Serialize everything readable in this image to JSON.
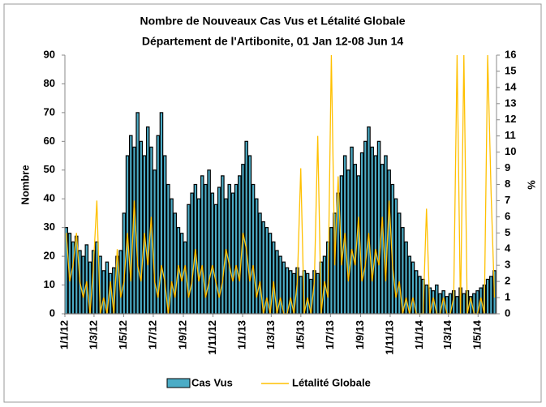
{
  "chart_data": {
    "type": "bar_line",
    "title": "Nombre de Nouveaux Cas Vus et Létalité Globale",
    "subtitle": "Département de l'Artibonite, 01 Jan 12-08 Jun 14",
    "ylabel": "Nombre",
    "y2label": "%",
    "xlim": [
      0,
      889
    ],
    "xticks": [
      {
        "value": 0,
        "label": "1/1/12"
      },
      {
        "value": 60,
        "label": "1/3/12"
      },
      {
        "value": 121,
        "label": "1/5/12"
      },
      {
        "value": 182,
        "label": "1/7/12"
      },
      {
        "value": 244,
        "label": "1/9/12"
      },
      {
        "value": 305,
        "label": "1/11/12"
      },
      {
        "value": 366,
        "label": "1/1/13"
      },
      {
        "value": 425,
        "label": "1/3/13"
      },
      {
        "value": 486,
        "label": "1/5/13"
      },
      {
        "value": 547,
        "label": "1/7/13"
      },
      {
        "value": 609,
        "label": "1/9/13"
      },
      {
        "value": 670,
        "label": "1/11/13"
      },
      {
        "value": 731,
        "label": "1/1/14"
      },
      {
        "value": 790,
        "label": "1/3/14"
      },
      {
        "value": 851,
        "label": "1/5/14"
      }
    ],
    "ylim": [
      0,
      90
    ],
    "yticks": [
      0,
      10,
      20,
      30,
      40,
      50,
      60,
      70,
      80,
      90
    ],
    "y2lim": [
      0,
      16
    ],
    "y2ticks": [
      0,
      1,
      2,
      3,
      4,
      5,
      6,
      7,
      8,
      9,
      10,
      11,
      12,
      13,
      14,
      15,
      16
    ],
    "x": [
      0,
      7,
      14,
      21,
      28,
      35,
      42,
      49,
      56,
      63,
      70,
      77,
      84,
      91,
      98,
      105,
      112,
      119,
      126,
      133,
      140,
      147,
      154,
      161,
      168,
      175,
      182,
      189,
      196,
      203,
      210,
      217,
      224,
      231,
      238,
      245,
      252,
      259,
      266,
      273,
      280,
      287,
      294,
      301,
      308,
      315,
      322,
      329,
      336,
      343,
      350,
      357,
      364,
      371,
      378,
      385,
      392,
      399,
      406,
      413,
      420,
      427,
      434,
      441,
      448,
      455,
      462,
      469,
      476,
      483,
      490,
      497,
      504,
      511,
      518,
      525,
      532,
      539,
      546,
      553,
      560,
      567,
      574,
      581,
      588,
      595,
      602,
      609,
      616,
      623,
      630,
      637,
      644,
      651,
      658,
      665,
      672,
      679,
      686,
      693,
      700,
      707,
      714,
      721,
      728,
      735,
      742,
      749,
      756,
      763,
      770,
      777,
      784,
      791,
      798,
      805,
      812,
      819,
      826,
      833,
      840,
      847,
      854,
      861,
      868,
      875,
      882
    ],
    "series": [
      {
        "name": "Cas Vus",
        "kind": "bar",
        "color": "#4BACC6",
        "edgecolor": "#000000",
        "values": [
          30,
          28,
          25,
          27,
          22,
          20,
          24,
          18,
          22,
          25,
          20,
          15,
          18,
          14,
          16,
          20,
          22,
          35,
          55,
          62,
          58,
          70,
          60,
          55,
          65,
          58,
          50,
          62,
          70,
          55,
          45,
          40,
          35,
          30,
          28,
          25,
          38,
          42,
          45,
          40,
          48,
          45,
          50,
          42,
          38,
          44,
          48,
          40,
          45,
          42,
          45,
          48,
          52,
          60,
          55,
          45,
          40,
          35,
          32,
          30,
          28,
          25,
          22,
          20,
          18,
          16,
          15,
          14,
          16,
          13,
          15,
          14,
          12,
          15,
          14,
          18,
          20,
          25,
          30,
          35,
          42,
          48,
          55,
          50,
          58,
          52,
          48,
          56,
          60,
          65,
          58,
          55,
          60,
          52,
          55,
          50,
          45,
          40,
          35,
          30,
          25,
          20,
          18,
          15,
          13,
          12,
          10,
          9,
          8,
          10,
          7,
          8,
          6,
          7,
          8,
          6,
          9,
          7,
          8,
          6,
          7,
          8,
          9,
          10,
          12,
          13,
          15
        ]
      },
      {
        "name": "Létalité Globale",
        "kind": "line",
        "axis": "y2",
        "color": "#FFC000",
        "values": [
          5,
          2,
          3,
          5,
          2,
          1,
          2,
          0,
          3,
          7,
          0,
          1,
          0,
          2,
          0,
          4,
          1,
          2,
          5,
          2,
          7,
          3,
          2,
          5,
          3,
          6,
          2,
          1,
          3,
          2,
          0,
          2,
          1,
          3,
          2,
          3,
          1,
          2,
          4,
          2,
          3,
          1,
          2,
          3,
          2,
          1,
          2,
          4,
          3,
          2,
          3,
          2,
          5,
          4,
          2,
          3,
          1,
          2,
          0,
          1,
          0,
          2,
          0,
          1,
          0,
          0,
          1,
          0,
          2,
          9,
          0,
          1,
          0,
          2,
          11,
          0,
          2,
          1,
          16,
          3,
          8.5,
          3,
          5,
          2,
          4,
          3,
          6,
          2,
          3,
          5,
          2,
          4,
          3,
          6,
          2,
          7,
          3,
          1,
          2,
          0,
          1,
          0,
          1,
          0,
          0,
          0,
          6.5,
          0,
          1,
          0,
          0,
          1,
          0,
          0,
          1,
          16,
          0,
          16,
          0,
          1,
          0,
          0,
          1,
          0,
          16,
          7.5,
          1
        ]
      }
    ]
  }
}
